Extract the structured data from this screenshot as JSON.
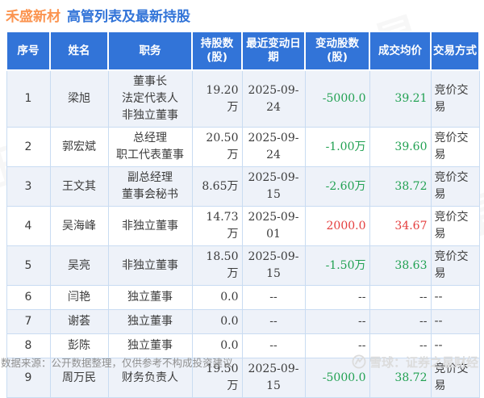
{
  "title": {
    "stock": "禾盛新材",
    "subtitle": "高管列表及最新持股"
  },
  "watermark_text": "证券之星",
  "table": {
    "headers": {
      "no": "序号",
      "name": "姓名",
      "position": "职务",
      "shares": "持股数\n(股)",
      "date": "最近变动日期",
      "change": "变动股数\n(股)",
      "price": "成交均价",
      "method": "交易方式"
    },
    "rows": [
      {
        "no": "1",
        "name": "梁旭",
        "position": "董事长\n法定代表人\n非独立董事",
        "shares": "19.20万",
        "date": "2025-09-24",
        "change": "-5000.0",
        "price": "39.21",
        "method": "竞价交易",
        "trend": "down"
      },
      {
        "no": "2",
        "name": "郭宏斌",
        "position": "总经理\n职工代表董事",
        "shares": "20.50万",
        "date": "2025-09-24",
        "change": "-1.00万",
        "price": "39.60",
        "method": "竞价交易",
        "trend": "down"
      },
      {
        "no": "3",
        "name": "王文其",
        "position": "副总经理\n董事会秘书",
        "shares": "8.65万",
        "date": "2025-09-15",
        "change": "-2.60万",
        "price": "38.72",
        "method": "竞价交易",
        "trend": "down"
      },
      {
        "no": "4",
        "name": "吴海峰",
        "position": "非独立董事",
        "shares": "14.73万",
        "date": "2025-09-01",
        "change": "2000.0",
        "price": "34.67",
        "method": "竞价交易",
        "trend": "up"
      },
      {
        "no": "5",
        "name": "吴亮",
        "position": "非独立董事",
        "shares": "18.50万",
        "date": "2025-09-15",
        "change": "-1.50万",
        "price": "38.63",
        "method": "竞价交易",
        "trend": "down"
      },
      {
        "no": "6",
        "name": "闫艳",
        "position": "独立董事",
        "shares": "0.0",
        "date": "--",
        "change": "--",
        "price": "--",
        "method": "--",
        "trend": "none"
      },
      {
        "no": "7",
        "name": "谢荟",
        "position": "独立董事",
        "shares": "0.0",
        "date": "--",
        "change": "--",
        "price": "--",
        "method": "--",
        "trend": "none"
      },
      {
        "no": "8",
        "name": "彭陈",
        "position": "独立董事",
        "shares": "0.0",
        "date": "--",
        "change": "--",
        "price": "--",
        "method": "--",
        "trend": "none"
      },
      {
        "no": "9",
        "name": "周万民",
        "position": "财务负责人",
        "shares": "19.50万",
        "date": "2025-09-15",
        "change": "-5000.0",
        "price": "38.72",
        "method": "竞价交易",
        "trend": "down"
      }
    ]
  },
  "footer": {
    "source": "数据来源：公开数据整理，仅供参考不构成投资建议",
    "brand": "雪球：证券之星财经"
  },
  "colors": {
    "header_bg": "#3274d8",
    "title_stock": "#fb9450",
    "title_main": "#3274d8",
    "up": "#e43d3d",
    "down": "#21a152",
    "row_alt": "#eef2f9",
    "border": "#c9dcf2"
  }
}
